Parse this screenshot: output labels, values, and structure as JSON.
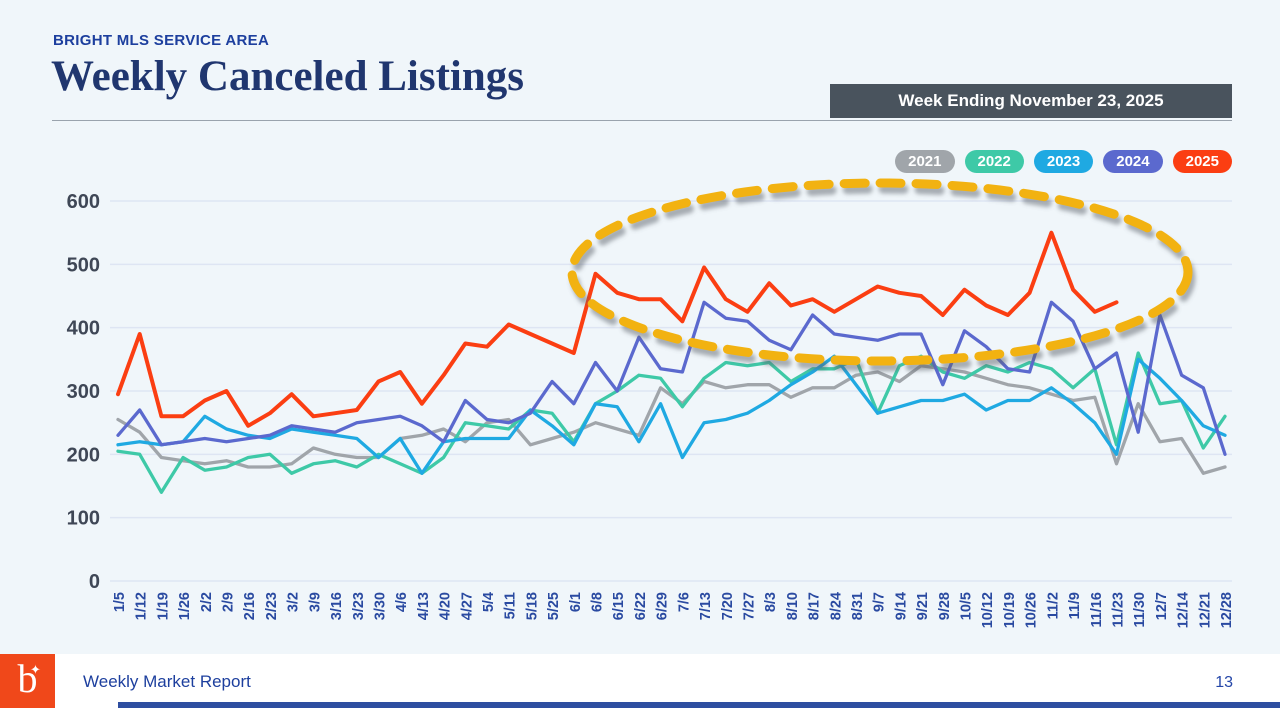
{
  "header": {
    "eyebrow": "BRIGHT MLS SERVICE AREA",
    "title": "Weekly Canceled Listings",
    "badge": "Week Ending November 23, 2025"
  },
  "footer": {
    "report_label": "Weekly Market Report",
    "page_number": "13",
    "logo_letter": "b",
    "logo_sparkle_icon": "✦"
  },
  "colors": {
    "background": "#F0F6FA",
    "badge_background": "#49535D",
    "title_text": "#20366F",
    "eyebrow_text": "#1D3F9E",
    "gridline": "#DEE5F3",
    "y_tick_text": "#3F4756",
    "x_tick_text": "#2A4AA1",
    "annotation_yellow": "#F2B211",
    "logo_orange": "#F0481A",
    "bottom_bar_blue": "#2E4EA0"
  },
  "chart_data": {
    "type": "line",
    "title": "Weekly Canceled Listings",
    "xlabel": "",
    "ylabel": "",
    "ylim": [
      0,
      600
    ],
    "yticks": [
      0,
      100,
      200,
      300,
      400,
      500,
      600
    ],
    "grid": true,
    "legend_position": "top-right",
    "x": [
      "1/5",
      "1/12",
      "1/19",
      "1/26",
      "2/2",
      "2/9",
      "2/16",
      "2/23",
      "3/2",
      "3/9",
      "3/16",
      "3/23",
      "3/30",
      "4/6",
      "4/13",
      "4/20",
      "4/27",
      "5/4",
      "5/11",
      "5/18",
      "5/25",
      "6/1",
      "6/8",
      "6/15",
      "6/22",
      "6/29",
      "7/6",
      "7/13",
      "7/20",
      "7/27",
      "8/3",
      "8/10",
      "8/17",
      "8/24",
      "8/31",
      "9/7",
      "9/14",
      "9/21",
      "9/28",
      "10/5",
      "10/12",
      "10/19",
      "10/26",
      "11/2",
      "11/9",
      "11/16",
      "11/23",
      "11/30",
      "12/7",
      "12/14",
      "12/21",
      "12/28"
    ],
    "series": [
      {
        "name": "2021",
        "color": "#A0A5AA",
        "values": [
          255,
          235,
          195,
          190,
          185,
          190,
          180,
          180,
          185,
          210,
          200,
          195,
          195,
          225,
          230,
          240,
          220,
          250,
          255,
          215,
          225,
          235,
          250,
          240,
          230,
          305,
          280,
          315,
          305,
          310,
          310,
          290,
          305,
          305,
          325,
          330,
          315,
          340,
          335,
          330,
          320,
          310,
          305,
          295,
          285,
          290,
          185,
          280,
          220,
          225,
          170,
          180
        ]
      },
      {
        "name": "2022",
        "color": "#3EC9A7",
        "values": [
          205,
          200,
          140,
          195,
          175,
          180,
          195,
          200,
          170,
          185,
          190,
          180,
          200,
          185,
          170,
          195,
          250,
          245,
          240,
          270,
          265,
          220,
          280,
          300,
          325,
          320,
          275,
          320,
          345,
          340,
          345,
          315,
          335,
          335,
          350,
          265,
          340,
          355,
          330,
          320,
          340,
          330,
          345,
          335,
          305,
          335,
          215,
          360,
          280,
          285,
          210,
          260
        ]
      },
      {
        "name": "2023",
        "color": "#1FA9E2",
        "values": [
          215,
          220,
          215,
          220,
          260,
          240,
          230,
          225,
          240,
          235,
          230,
          225,
          195,
          225,
          170,
          220,
          225,
          225,
          225,
          270,
          245,
          215,
          280,
          275,
          220,
          280,
          195,
          250,
          255,
          265,
          285,
          310,
          330,
          355,
          310,
          265,
          275,
          285,
          285,
          295,
          270,
          285,
          285,
          305,
          280,
          250,
          200,
          350,
          320,
          285,
          245,
          230
        ]
      },
      {
        "name": "2024",
        "color": "#5B69CE",
        "values": [
          230,
          270,
          215,
          220,
          225,
          220,
          225,
          230,
          245,
          240,
          235,
          250,
          255,
          260,
          245,
          220,
          285,
          255,
          250,
          265,
          315,
          280,
          345,
          300,
          385,
          335,
          330,
          440,
          415,
          410,
          380,
          365,
          420,
          390,
          385,
          380,
          390,
          390,
          310,
          395,
          370,
          335,
          330,
          440,
          410,
          335,
          360,
          235,
          420,
          325,
          305,
          200
        ]
      },
      {
        "name": "2025",
        "color": "#FB3E12",
        "values": [
          295,
          390,
          260,
          260,
          285,
          300,
          245,
          265,
          295,
          260,
          265,
          270,
          315,
          330,
          280,
          325,
          375,
          370,
          405,
          390,
          375,
          360,
          485,
          455,
          445,
          445,
          410,
          495,
          445,
          425,
          470,
          435,
          445,
          425,
          445,
          465,
          455,
          450,
          420,
          460,
          435,
          420,
          455,
          550,
          460,
          425,
          440,
          null,
          null,
          null,
          null,
          null
        ]
      }
    ],
    "annotation": {
      "shape": "dashed-ellipse",
      "color": "#F2B211",
      "center_x_label": "8/24",
      "covers": "June through November 2025 elevated values"
    }
  }
}
